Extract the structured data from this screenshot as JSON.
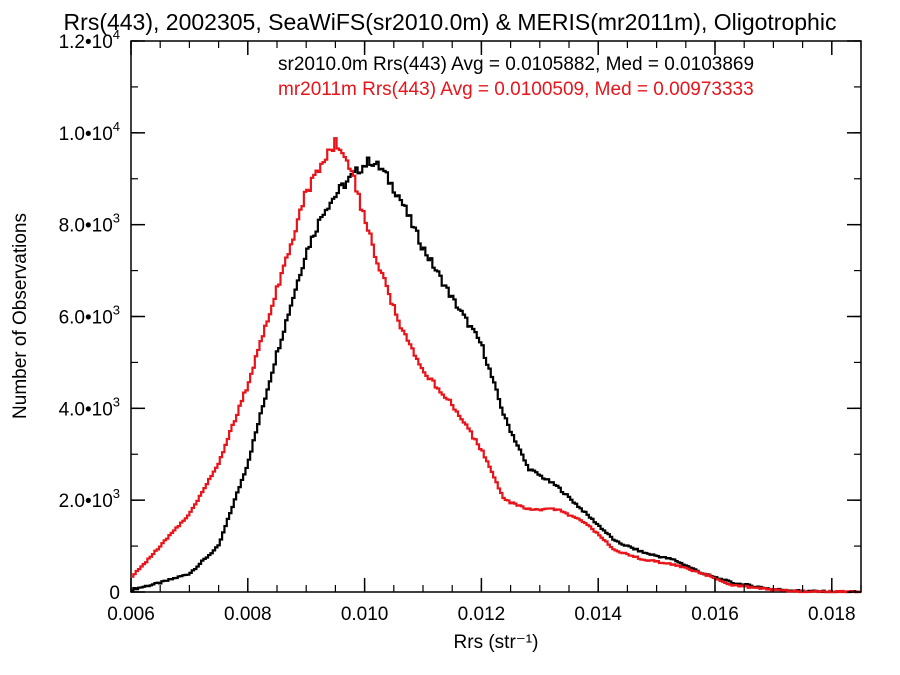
{
  "chart_data": {
    "type": "line",
    "title": "Rrs(443), 2002305, SeaWiFS(sr2010.0m) & MERIS(mr2011m), Oligotrophic",
    "xlabel": "Rrs (str⁻¹)",
    "ylabel": "Number of Observations",
    "xlim": [
      0.006,
      0.0185
    ],
    "ylim": [
      0,
      12000
    ],
    "x_ticks": [
      "0.006",
      "0.008",
      "0.010",
      "0.012",
      "0.014",
      "0.016",
      "0.018"
    ],
    "y_ticks": [
      {
        "value": 0,
        "label": "0",
        "exp": ""
      },
      {
        "value": 2000,
        "label": "2.0•10",
        "exp": "3"
      },
      {
        "value": 4000,
        "label": "4.0•10",
        "exp": "3"
      },
      {
        "value": 6000,
        "label": "6.0•10",
        "exp": "3"
      },
      {
        "value": 8000,
        "label": "8.0•10",
        "exp": "3"
      },
      {
        "value": 10000,
        "label": "1.0•10",
        "exp": "4"
      },
      {
        "value": 12000,
        "label": "1.2•10",
        "exp": "4"
      }
    ],
    "grid": false,
    "annotations": [
      {
        "text": "sr2010.0m Rrs(443) Avg = 0.0105882, Med = 0.0103869",
        "color": "#000000"
      },
      {
        "text": "mr2011m Rrs(443) Avg = 0.0100509, Med = 0.00973333",
        "color": "#e8141a"
      }
    ],
    "series": [
      {
        "color": "#000000",
        "x": [
          0.006,
          0.0065,
          0.007,
          0.0075,
          0.008,
          0.0085,
          0.009,
          0.0093,
          0.0096,
          0.0099,
          0.0101,
          0.0103,
          0.0106,
          0.011,
          0.0115,
          0.012,
          0.0124,
          0.0128,
          0.0133,
          0.0138,
          0.0143,
          0.0148,
          0.0153,
          0.0158,
          0.0163,
          0.017,
          0.0175,
          0.018,
          0.0185
        ],
        "y": [
          50,
          200,
          400,
          1000,
          2800,
          5200,
          7400,
          8300,
          8800,
          9200,
          9400,
          9200,
          8600,
          7500,
          6400,
          5400,
          3800,
          2700,
          2300,
          1700,
          1100,
          850,
          700,
          400,
          200,
          60,
          20,
          5,
          0
        ]
      },
      {
        "color": "#e8141a",
        "x": [
          0.006,
          0.0065,
          0.007,
          0.0075,
          0.008,
          0.0083,
          0.0086,
          0.009,
          0.0093,
          0.0095,
          0.0097,
          0.0099,
          0.0102,
          0.0106,
          0.011,
          0.0115,
          0.012,
          0.0124,
          0.0128,
          0.0133,
          0.0138,
          0.0143,
          0.0148,
          0.0153,
          0.0158,
          0.0163,
          0.017,
          0.0175,
          0.018,
          0.0185
        ],
        "y": [
          300,
          1000,
          1700,
          2800,
          4500,
          5800,
          7000,
          8700,
          9400,
          9800,
          9500,
          8600,
          7300,
          5800,
          4800,
          4100,
          3100,
          2000,
          1800,
          1800,
          1500,
          900,
          700,
          600,
          400,
          150,
          50,
          15,
          5,
          0
        ]
      }
    ]
  }
}
